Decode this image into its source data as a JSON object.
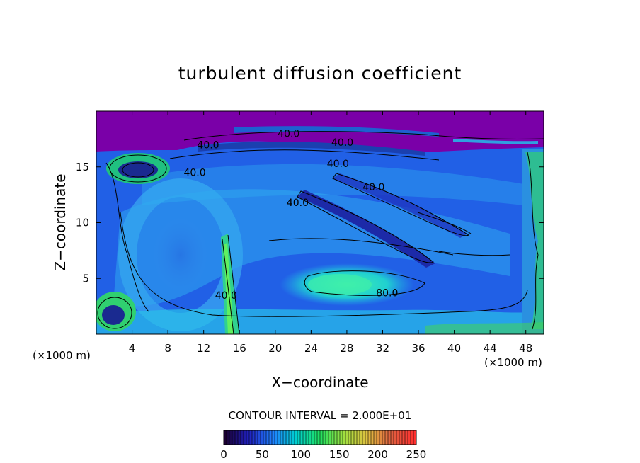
{
  "chart_data": {
    "type": "heatmap",
    "title": "turbulent diffusion coefficient",
    "xlabel": "X−coordinate",
    "ylabel": "Z−coordinate",
    "x_unit_left": "(×1000 m)",
    "x_unit_right": "(×1000 m)",
    "xlim": [
      0,
      50
    ],
    "ylim": [
      0,
      20
    ],
    "xticks": [
      4,
      8,
      12,
      16,
      20,
      24,
      28,
      32,
      36,
      40,
      44,
      48
    ],
    "yticks": [
      5,
      10,
      15
    ],
    "contour_interval_text": "CONTOUR INTERVAL = 2.000E+01",
    "contour_labels": [
      {
        "text": "40.0",
        "x": 21.5,
        "z": 18.0
      },
      {
        "text": "40.0",
        "x": 12.5,
        "z": 17.0
      },
      {
        "text": "40.0",
        "x": 27.5,
        "z": 17.2
      },
      {
        "text": "40.0",
        "x": 27.0,
        "z": 15.3
      },
      {
        "text": "40.0",
        "x": 11.0,
        "z": 14.5
      },
      {
        "text": "40.0",
        "x": 31.0,
        "z": 13.2
      },
      {
        "text": "40.0",
        "x": 22.5,
        "z": 11.8
      },
      {
        "text": "40.0",
        "x": 14.5,
        "z": 3.5
      },
      {
        "text": "80.0",
        "x": 32.5,
        "z": 3.7
      }
    ],
    "colorbar": {
      "min": 0,
      "max": 250,
      "ticks": [
        "0",
        "50",
        "100",
        "150",
        "200",
        "250"
      ],
      "colormap": [
        "#1a0030",
        "#2020c0",
        "#2080ff",
        "#00d0d0",
        "#20e060",
        "#a0e040",
        "#e0c040",
        "#e06040",
        "#ff3030"
      ]
    },
    "colors": {
      "top_layer": "#7a00a8",
      "background_field": "#1e5ce0",
      "high_region": "#30e0c0"
    }
  }
}
